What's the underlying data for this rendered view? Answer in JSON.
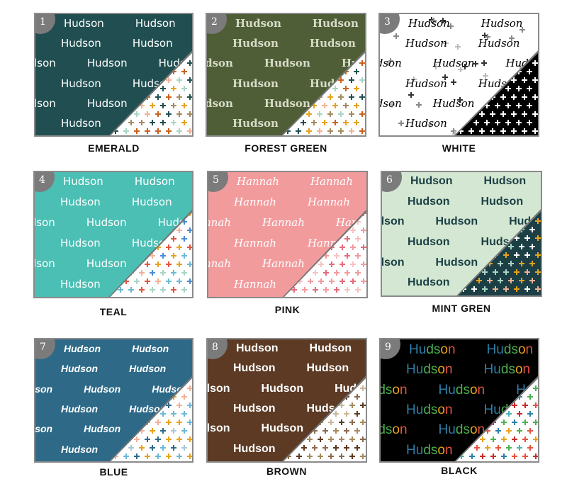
{
  "tiles": [
    {
      "number": "1",
      "label": "EMERALD",
      "name": "Hudson",
      "font": "sans",
      "bg": "#214f51",
      "text_color": "#ffffff",
      "corner_bg": "#ffffff",
      "plus_colors": [
        "#e8a21b",
        "#214f51",
        "#a58a5f",
        "#f2b196",
        "#a9d5c6",
        "#c9621f"
      ]
    },
    {
      "number": "2",
      "label": "FOREST GREEN",
      "name": "Hudson",
      "font": "serif",
      "bg": "#4f5e36",
      "text_color": "#d7dcc8",
      "corner_bg": "#ffffff",
      "plus_colors": [
        "#e8a21b",
        "#214f51",
        "#a58a5f",
        "#f2b196",
        "#a9d5c6",
        "#c9621f"
      ]
    },
    {
      "number": "3",
      "label": "WHITE",
      "name": "Hudson",
      "font": "script",
      "bg": "#ffffff",
      "text_color": "#000000",
      "corner_bg": "#000000",
      "plus_colors": [
        "#ffffff"
      ]
    },
    {
      "number": "4",
      "label": "TEAL",
      "name": "Hudson",
      "font": "sans",
      "bg": "#4bbfb4",
      "text_color": "#ffffff",
      "corner_bg": "#ffffff",
      "plus_colors": [
        "#e8a21b",
        "#e5533f",
        "#6bb9d6",
        "#f2b196",
        "#a9d5c6",
        "#4c8bd6"
      ]
    },
    {
      "number": "5",
      "label": "PINK",
      "name": "Hannah",
      "font": "script",
      "bg": "#f29b9d",
      "text_color": "#ffffff",
      "corner_bg": "#ffffff",
      "plus_colors": [
        "#f29b9d",
        "#e56b7a",
        "#f7c2c3"
      ]
    },
    {
      "number": "6",
      "label": "MINT GREN",
      "name": "Hudson",
      "font": "bold",
      "bg": "#d3e7d2",
      "text_color": "#1c3f45",
      "corner_bg": "#1c3f45",
      "plus_colors": [
        "#e8a21b",
        "#a9d5c6",
        "#f2b196",
        "#ffffff"
      ]
    },
    {
      "number": "7",
      "label": "BLUE",
      "name": "Hudson",
      "font": "brush",
      "bg": "#2e6a88",
      "text_color": "#ffffff",
      "corner_bg": "#ffffff",
      "plus_colors": [
        "#e8a21b",
        "#2e6a88",
        "#a9c7d6",
        "#f2b196",
        "#6bb9d6"
      ]
    },
    {
      "number": "8",
      "label": "BROWN",
      "name": "Hudson",
      "font": "bold",
      "bg": "#5c3a24",
      "text_color": "#ffffff",
      "corner_bg": "#ffffff",
      "plus_colors": [
        "#5c3a24",
        "#a58a5f",
        "#c9b79c",
        "#8a6a4f"
      ]
    },
    {
      "number": "9",
      "label": "BLACK",
      "name": "Hudson",
      "font": "color",
      "bg": "#000000",
      "text_color": "#2e7fa8",
      "corner_bg": "#ffffff",
      "plus_colors": [
        "#e5533f",
        "#4caf50",
        "#2e7fa8",
        "#e8a21b",
        "#46b3b0",
        "#c92a2a"
      ],
      "letter_colors": [
        "#2e7fa8",
        "#2e7fa8",
        "#4caf50",
        "#4caf50",
        "#e8a21b",
        "#e5533f"
      ]
    }
  ]
}
